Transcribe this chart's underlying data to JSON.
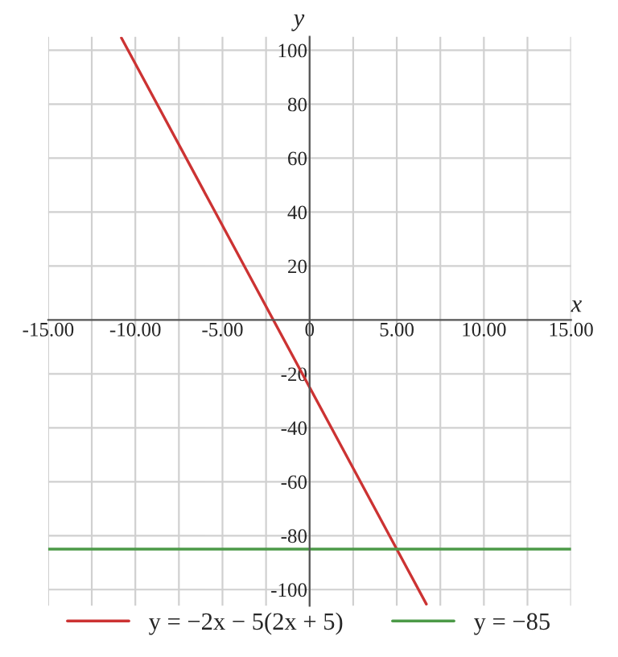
{
  "chart_data": {
    "type": "line",
    "xlabel": "x",
    "ylabel": "y",
    "xlim": [
      -15,
      15
    ],
    "ylim": [
      -106,
      105
    ],
    "xticks": [
      {
        "value": -15,
        "label": "-15.00"
      },
      {
        "value": -12.5,
        "label": null
      },
      {
        "value": -10,
        "label": "-10.00"
      },
      {
        "value": -7.5,
        "label": null
      },
      {
        "value": -5,
        "label": "-5.00"
      },
      {
        "value": -2.5,
        "label": null
      },
      {
        "value": 0,
        "label": "0"
      },
      {
        "value": 2.5,
        "label": null
      },
      {
        "value": 5,
        "label": "5.00"
      },
      {
        "value": 7.5,
        "label": null
      },
      {
        "value": 10,
        "label": "10.00"
      },
      {
        "value": 12.5,
        "label": null
      },
      {
        "value": 15,
        "label": "15.00"
      }
    ],
    "yticks": [
      -100,
      -80,
      -60,
      -40,
      -20,
      20,
      40,
      60,
      80,
      100
    ],
    "grid": true,
    "legend": "bottom",
    "marker": "none",
    "line_style": "solid",
    "series": [
      {
        "name": "y = −2x − 5(2x + 5)",
        "color": "#cc3333",
        "x": [
          -10.8,
          6.7
        ],
        "values": [
          104.6,
          -105.4
        ]
      },
      {
        "name": "y = −85",
        "color": "#4c9a48",
        "x": [
          -15,
          15
        ],
        "values": [
          -85,
          -85
        ]
      }
    ]
  }
}
